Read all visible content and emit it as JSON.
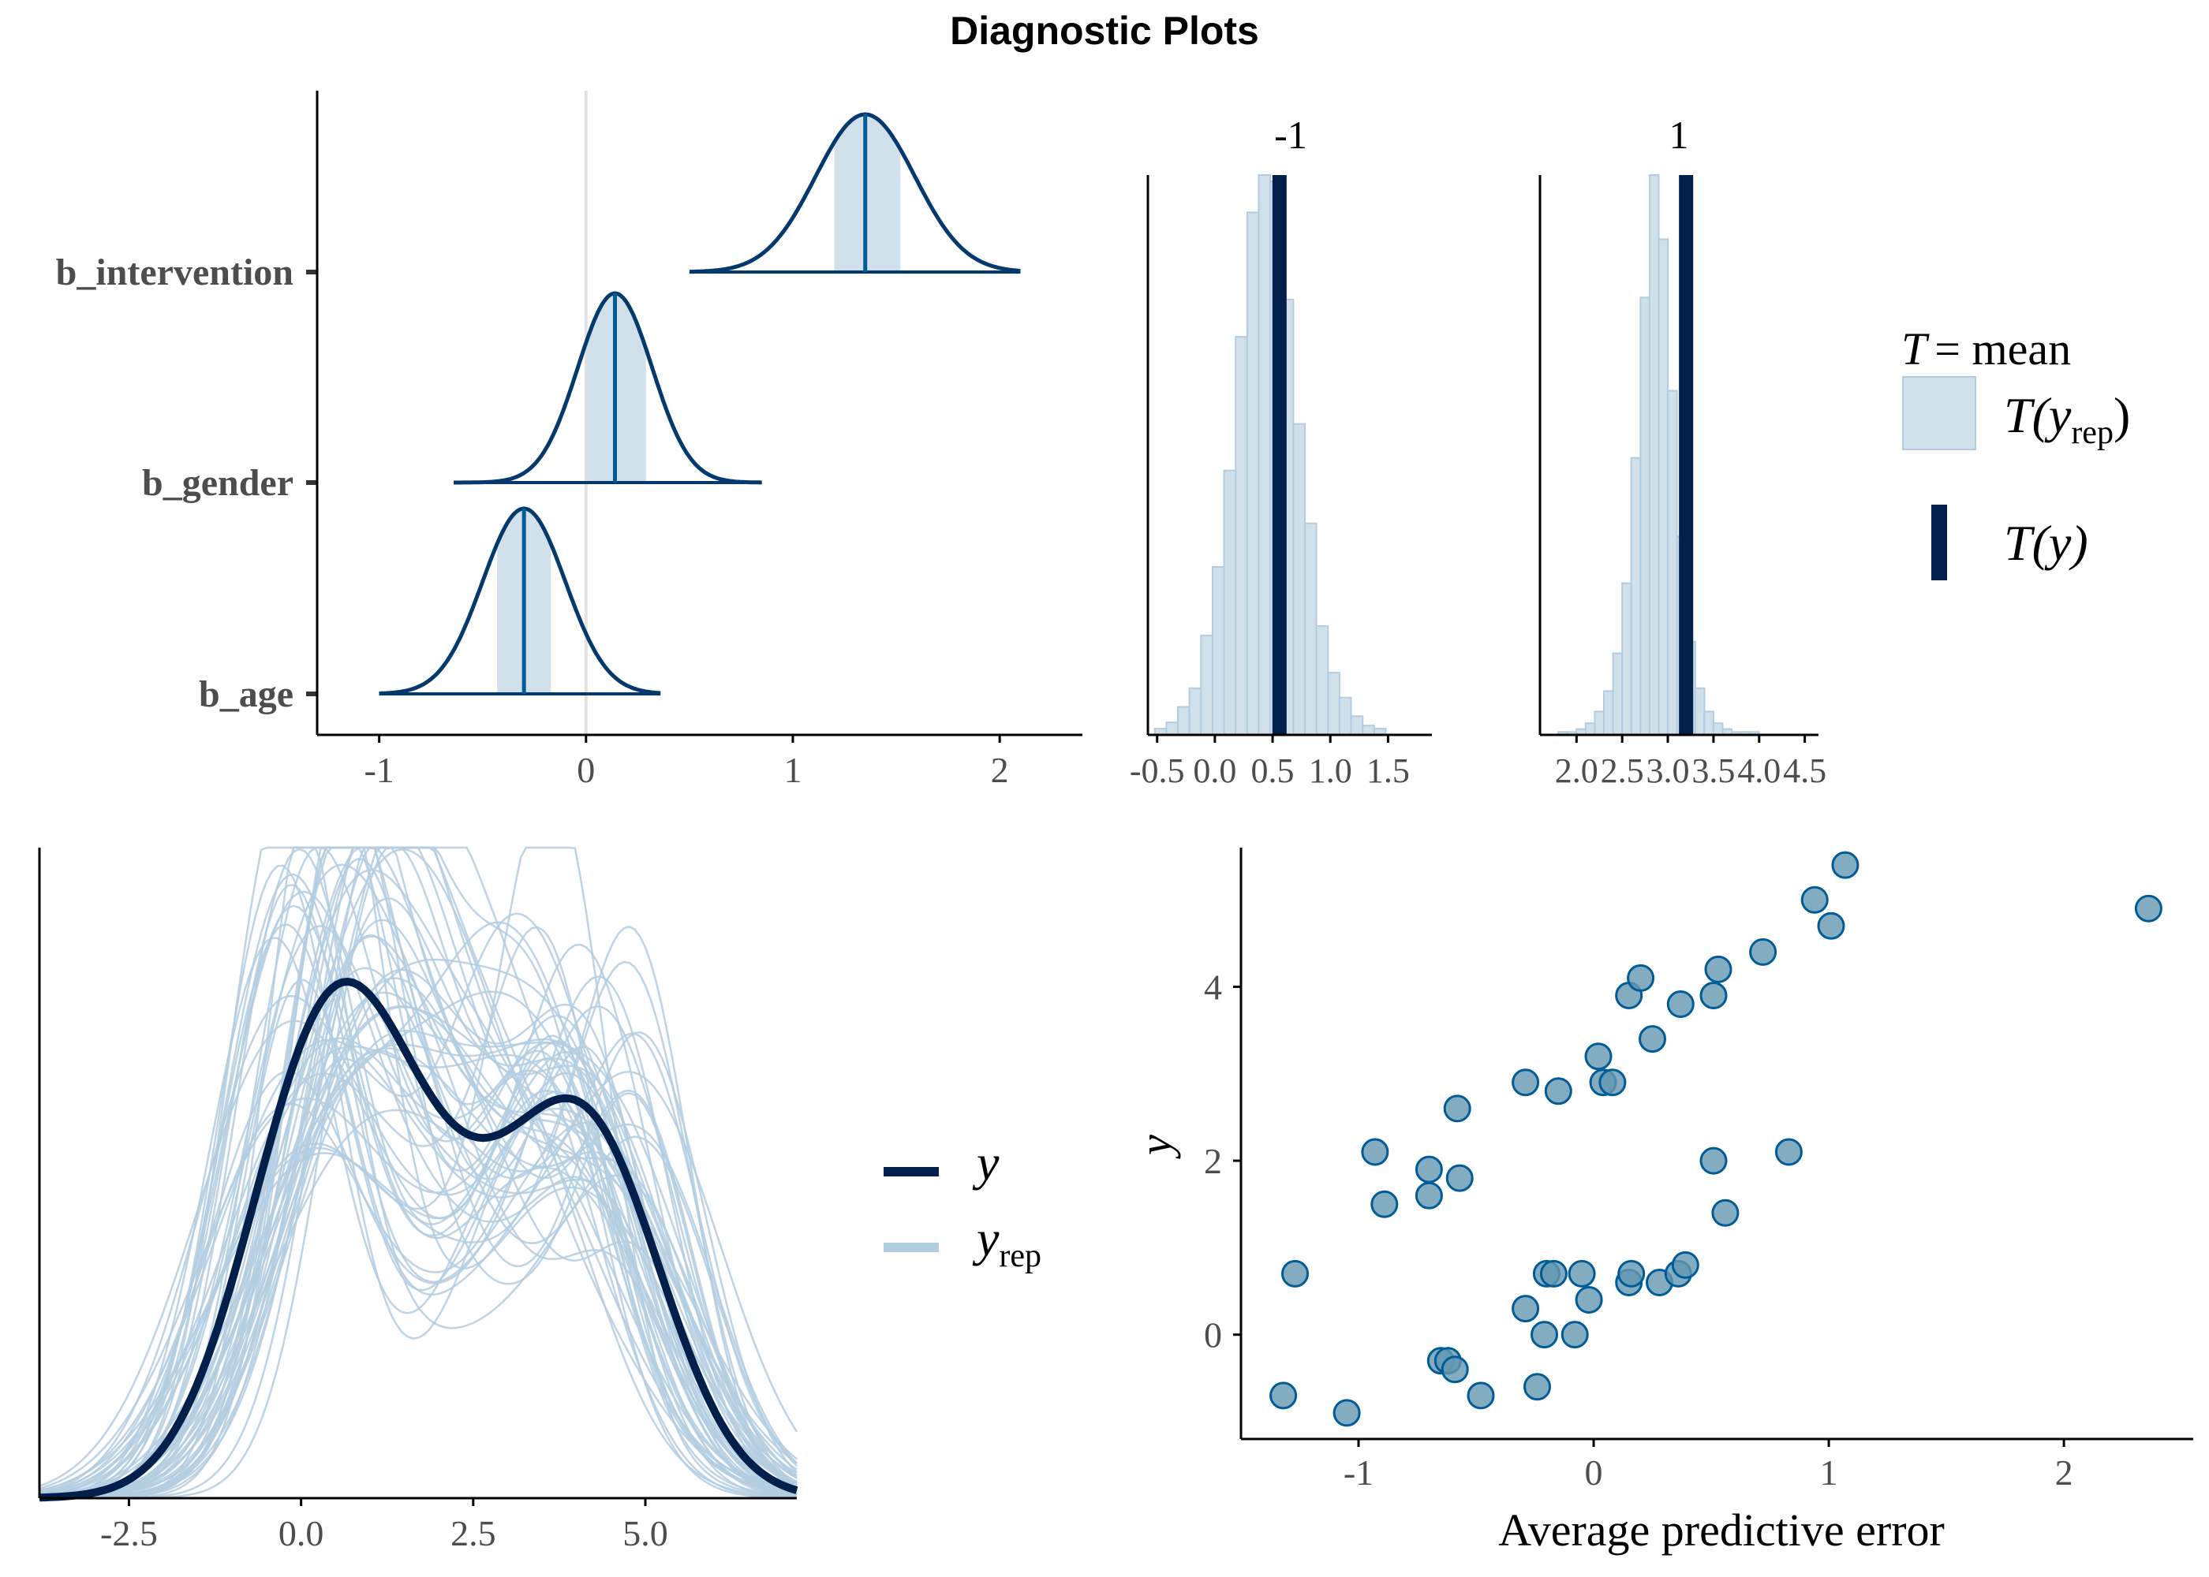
{
  "title": "Diagnostic Plots",
  "colors": {
    "dark": "#011f4b",
    "mid": "#03396c",
    "fill": "#d1e1ec",
    "light": "#b3cde0",
    "point": "#6497b1",
    "point_edge": "#005b96",
    "zero_line": "#e2e2e2",
    "axis": "#000000",
    "tick_label": "#4d4d4d"
  },
  "chart_data": [
    {
      "id": "intervals",
      "type": "density-ridges",
      "xlim": [
        -1.3,
        2.4
      ],
      "xticks": [
        -1,
        0,
        1,
        2
      ],
      "xtick_labels": [
        "-1",
        "0",
        "1",
        "2"
      ],
      "categories": [
        "b_intervention",
        "b_gender",
        "b_age"
      ],
      "series": [
        {
          "name": "b_intervention",
          "center": 1.35,
          "sd": 0.24,
          "lo": 0.5,
          "hi": 2.1,
          "inner": [
            1.2,
            1.52
          ]
        },
        {
          "name": "b_gender",
          "center": 0.14,
          "sd": 0.18,
          "lo": -0.64,
          "hi": 0.85,
          "inner": [
            0.0,
            0.29
          ]
        },
        {
          "name": "b_age",
          "center": -0.3,
          "sd": 0.2,
          "lo": -1.0,
          "hi": 0.36,
          "inner": [
            -0.43,
            -0.17
          ]
        }
      ]
    },
    {
      "id": "stat-grouped",
      "type": "histogram",
      "legend": {
        "stat_symbol": "T",
        "stat_text": "= mean",
        "rep_label": "T(y",
        "rep_sub": "rep",
        "rep_close": ")",
        "obs_label": "T(y)"
      },
      "panels": [
        {
          "label": "-1",
          "xlim": [
            -0.58,
            1.88
          ],
          "xticks": [
            -0.5,
            0.0,
            0.5,
            1.0,
            1.5
          ],
          "xtick_labels": [
            "-0.5",
            "0.0",
            "0.5",
            "1.0",
            "1.5"
          ],
          "bin_start": -0.52,
          "bin_width": 0.1,
          "counts": [
            2,
            4,
            9,
            15,
            32,
            54,
            85,
            128,
            168,
            180,
            178,
            140,
            100,
            68,
            35,
            20,
            12,
            6,
            3,
            2
          ],
          "observed": 0.56
        },
        {
          "label": "1",
          "xlim": [
            1.6,
            4.65
          ],
          "xticks": [
            2.0,
            2.5,
            3.0,
            3.5,
            4.0,
            4.5
          ],
          "xtick_labels": [
            "2.0",
            "2.5",
            "3.0",
            "3.5",
            "4.0",
            "4.5"
          ],
          "bin_start": 1.8,
          "bin_width": 0.1,
          "counts": [
            1,
            1,
            2,
            4,
            8,
            15,
            28,
            52,
            95,
            150,
            192,
            170,
            118,
            68,
            32,
            16,
            8,
            4,
            2,
            1,
            1,
            1
          ],
          "observed": 3.2
        }
      ]
    },
    {
      "id": "density-overlay",
      "type": "line",
      "xlim": [
        -3.8,
        7.2
      ],
      "xticks": [
        -2.5,
        0.0,
        2.5,
        5.0
      ],
      "xtick_labels": [
        "-2.5",
        "0.0",
        "2.5",
        "5.0"
      ],
      "legend": {
        "y_label": "y",
        "yrep_label": "y",
        "yrep_sub": "rep"
      },
      "observed": [
        {
          "mu": 0.4,
          "sd": 1.15,
          "w": 0.45
        },
        {
          "mu": 2.6,
          "sd": 1.5,
          "w": 0.3
        },
        {
          "mu": 4.3,
          "sd": 1.05,
          "w": 0.25
        }
      ],
      "n_replicates": 60
    },
    {
      "id": "error-scatter",
      "type": "scatter",
      "xlabel": "Average predictive error",
      "ylabel": "y",
      "xlim": [
        -1.5,
        2.55
      ],
      "ylim": [
        -1.2,
        5.6
      ],
      "xticks": [
        -1,
        0,
        1,
        2
      ],
      "xtick_labels": [
        "-1",
        "0",
        "1",
        "2"
      ],
      "yticks": [
        0,
        2,
        4
      ],
      "ytick_labels": [
        "0",
        "2",
        "4"
      ],
      "points": [
        [
          -1.32,
          -0.7
        ],
        [
          -1.05,
          -0.9
        ],
        [
          -1.27,
          0.7
        ],
        [
          -0.93,
          2.1
        ],
        [
          -0.89,
          1.5
        ],
        [
          -0.7,
          1.9
        ],
        [
          -0.7,
          1.6
        ],
        [
          -0.58,
          2.6
        ],
        [
          -0.57,
          1.8
        ],
        [
          -0.65,
          -0.3
        ],
        [
          -0.62,
          -0.3
        ],
        [
          -0.59,
          -0.4
        ],
        [
          -0.48,
          -0.7
        ],
        [
          -0.29,
          2.9
        ],
        [
          -0.15,
          2.8
        ],
        [
          -0.29,
          0.3
        ],
        [
          -0.24,
          -0.6
        ],
        [
          -0.21,
          0.0
        ],
        [
          -0.2,
          0.7
        ],
        [
          -0.17,
          0.7
        ],
        [
          -0.08,
          0.0
        ],
        [
          -0.05,
          0.7
        ],
        [
          -0.02,
          0.4
        ],
        [
          0.02,
          3.2
        ],
        [
          0.04,
          2.9
        ],
        [
          0.08,
          2.9
        ],
        [
          0.15,
          3.9
        ],
        [
          0.2,
          4.1
        ],
        [
          0.25,
          3.4
        ],
        [
          0.15,
          0.6
        ],
        [
          0.16,
          0.7
        ],
        [
          0.28,
          0.6
        ],
        [
          0.36,
          0.7
        ],
        [
          0.39,
          0.8
        ],
        [
          0.37,
          3.8
        ],
        [
          0.51,
          3.9
        ],
        [
          0.53,
          4.2
        ],
        [
          0.51,
          2.0
        ],
        [
          0.56,
          1.4
        ],
        [
          0.72,
          4.4
        ],
        [
          0.83,
          2.1
        ],
        [
          0.94,
          5.0
        ],
        [
          1.01,
          4.7
        ],
        [
          1.07,
          5.4
        ],
        [
          2.36,
          4.9
        ]
      ]
    }
  ]
}
